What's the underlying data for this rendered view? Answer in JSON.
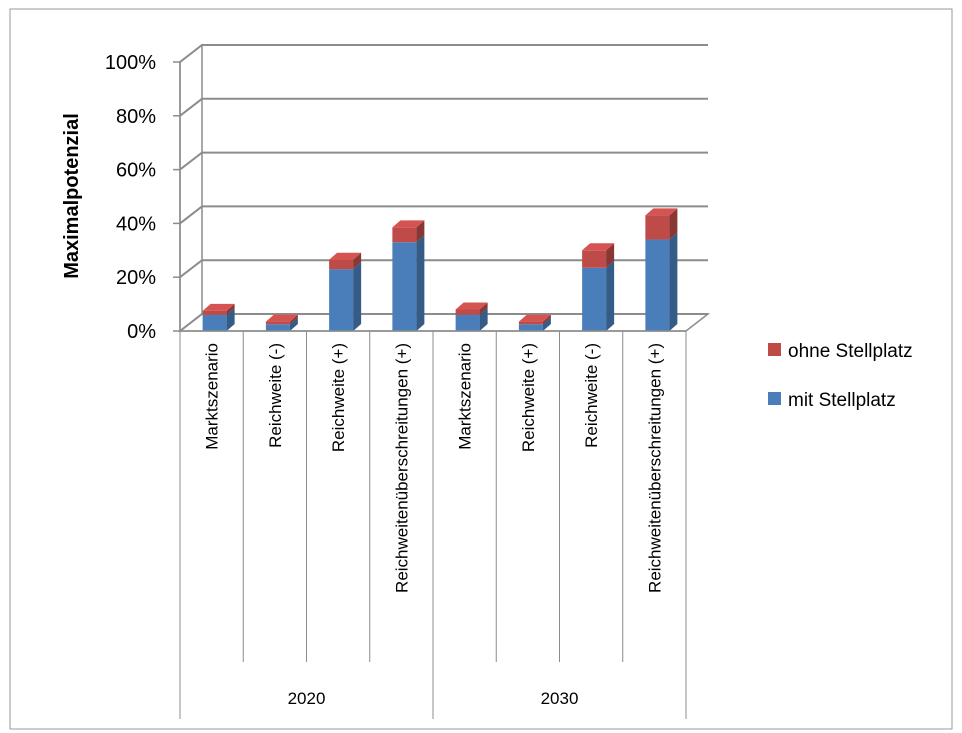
{
  "chart_data": {
    "type": "bar",
    "stacked": true,
    "style": "3d-column",
    "ylabel": "Maximalpotenzial",
    "ylim": [
      0,
      100
    ],
    "yticks": [
      "0%",
      "20%",
      "40%",
      "60%",
      "80%",
      "100%"
    ],
    "groups": [
      {
        "label": "2020",
        "categories": [
          "Marktszenario",
          "Reichweite (-)",
          "Reichweite (+)",
          "Reichweitenüberschreitungen (+)"
        ]
      },
      {
        "label": "2030",
        "categories": [
          "Marktszenario",
          "Reichweite (+)",
          "Reichweite (-)",
          "Reichweitenüberschreitungen (+)"
        ]
      }
    ],
    "series": [
      {
        "name": "mit Stellplatz",
        "color": "#4a7ebb",
        "values": [
          6,
          2.5,
          23,
          33,
          6,
          2.5,
          23.5,
          34
        ]
      },
      {
        "name": "ohne Stellplatz",
        "color": "#be4b48",
        "values": [
          1.5,
          1,
          3.5,
          5.5,
          2,
          1,
          6.5,
          9
        ]
      }
    ],
    "legend": "right",
    "grid": true
  }
}
